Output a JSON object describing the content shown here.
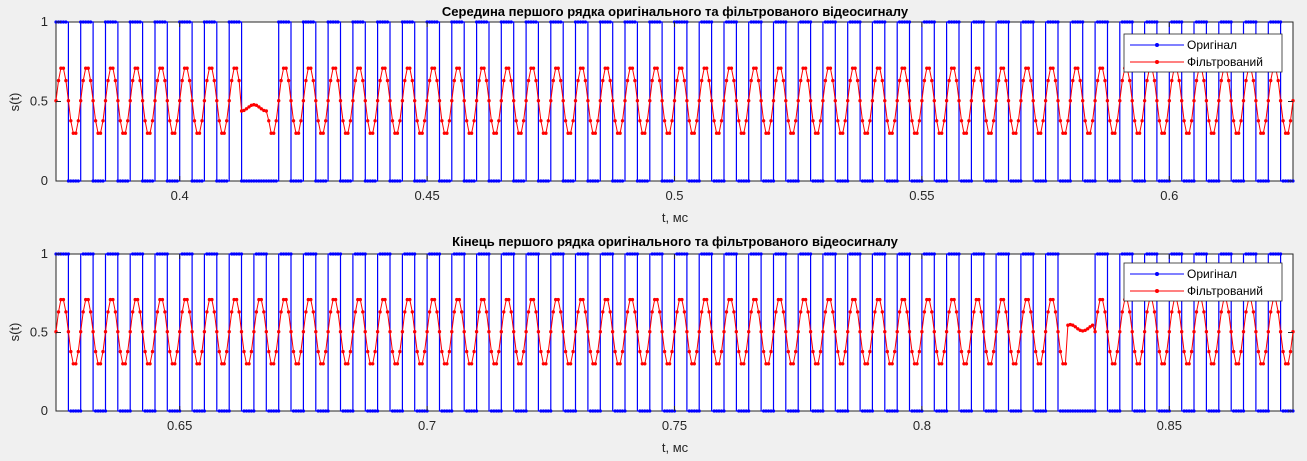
{
  "chart_data": [
    {
      "type": "line",
      "title": "Середина першого рядка оригінального та фільтрованого відеосигналу",
      "xlabel": "t, мс",
      "ylabel": "s(t)",
      "xlim": [
        0.375,
        0.625
      ],
      "ylim": [
        0,
        1
      ],
      "xticks": [
        0.4,
        0.45,
        0.5,
        0.55,
        0.6
      ],
      "xtick_labels": [
        "0.4",
        "0.45",
        "0.5",
        "0.55",
        "0.6"
      ],
      "yticks": [
        0,
        0.5,
        1
      ],
      "ytick_labels": [
        "0",
        "0.5",
        "1"
      ],
      "grid": false,
      "legend_position": "top-right",
      "pulse_period_ms": 0.005,
      "missing_pulse_at_ms": [
        0.415
      ],
      "series": [
        {
          "name": "Оригінал",
          "color": "#0000ff",
          "marker": "dot",
          "levels": [
            0,
            1
          ],
          "waveform": "square"
        },
        {
          "name": "Фільтрований",
          "color": "#ff0000",
          "marker": "dot",
          "levels": [
            0.29,
            0.72
          ],
          "gap_level": 0.46,
          "waveform": "oscillation"
        }
      ]
    },
    {
      "type": "line",
      "title": "Кінець першого рядка оригінального та фільтрованого відеосигналу",
      "xlabel": "t, мс",
      "ylabel": "s(t)",
      "xlim": [
        0.625,
        0.875
      ],
      "ylim": [
        0,
        1
      ],
      "xticks": [
        0.65,
        0.7,
        0.75,
        0.8,
        0.85
      ],
      "xtick_labels": [
        "0.65",
        "0.7",
        "0.75",
        "0.8",
        "0.85"
      ],
      "yticks": [
        0,
        0.5,
        1
      ],
      "ytick_labels": [
        "0",
        "0.5",
        "1"
      ],
      "grid": false,
      "legend_position": "top-right",
      "pulse_period_ms": 0.005,
      "missing_pulse_at_ms": [
        0.832
      ],
      "series": [
        {
          "name": "Оригінал",
          "color": "#0000ff",
          "marker": "dot",
          "levels": [
            0,
            1
          ],
          "waveform": "square"
        },
        {
          "name": "Фільтрований",
          "color": "#ff0000",
          "marker": "dot",
          "levels": [
            0.29,
            0.72
          ],
          "gap_level": 0.53,
          "waveform": "oscillation"
        }
      ]
    }
  ]
}
